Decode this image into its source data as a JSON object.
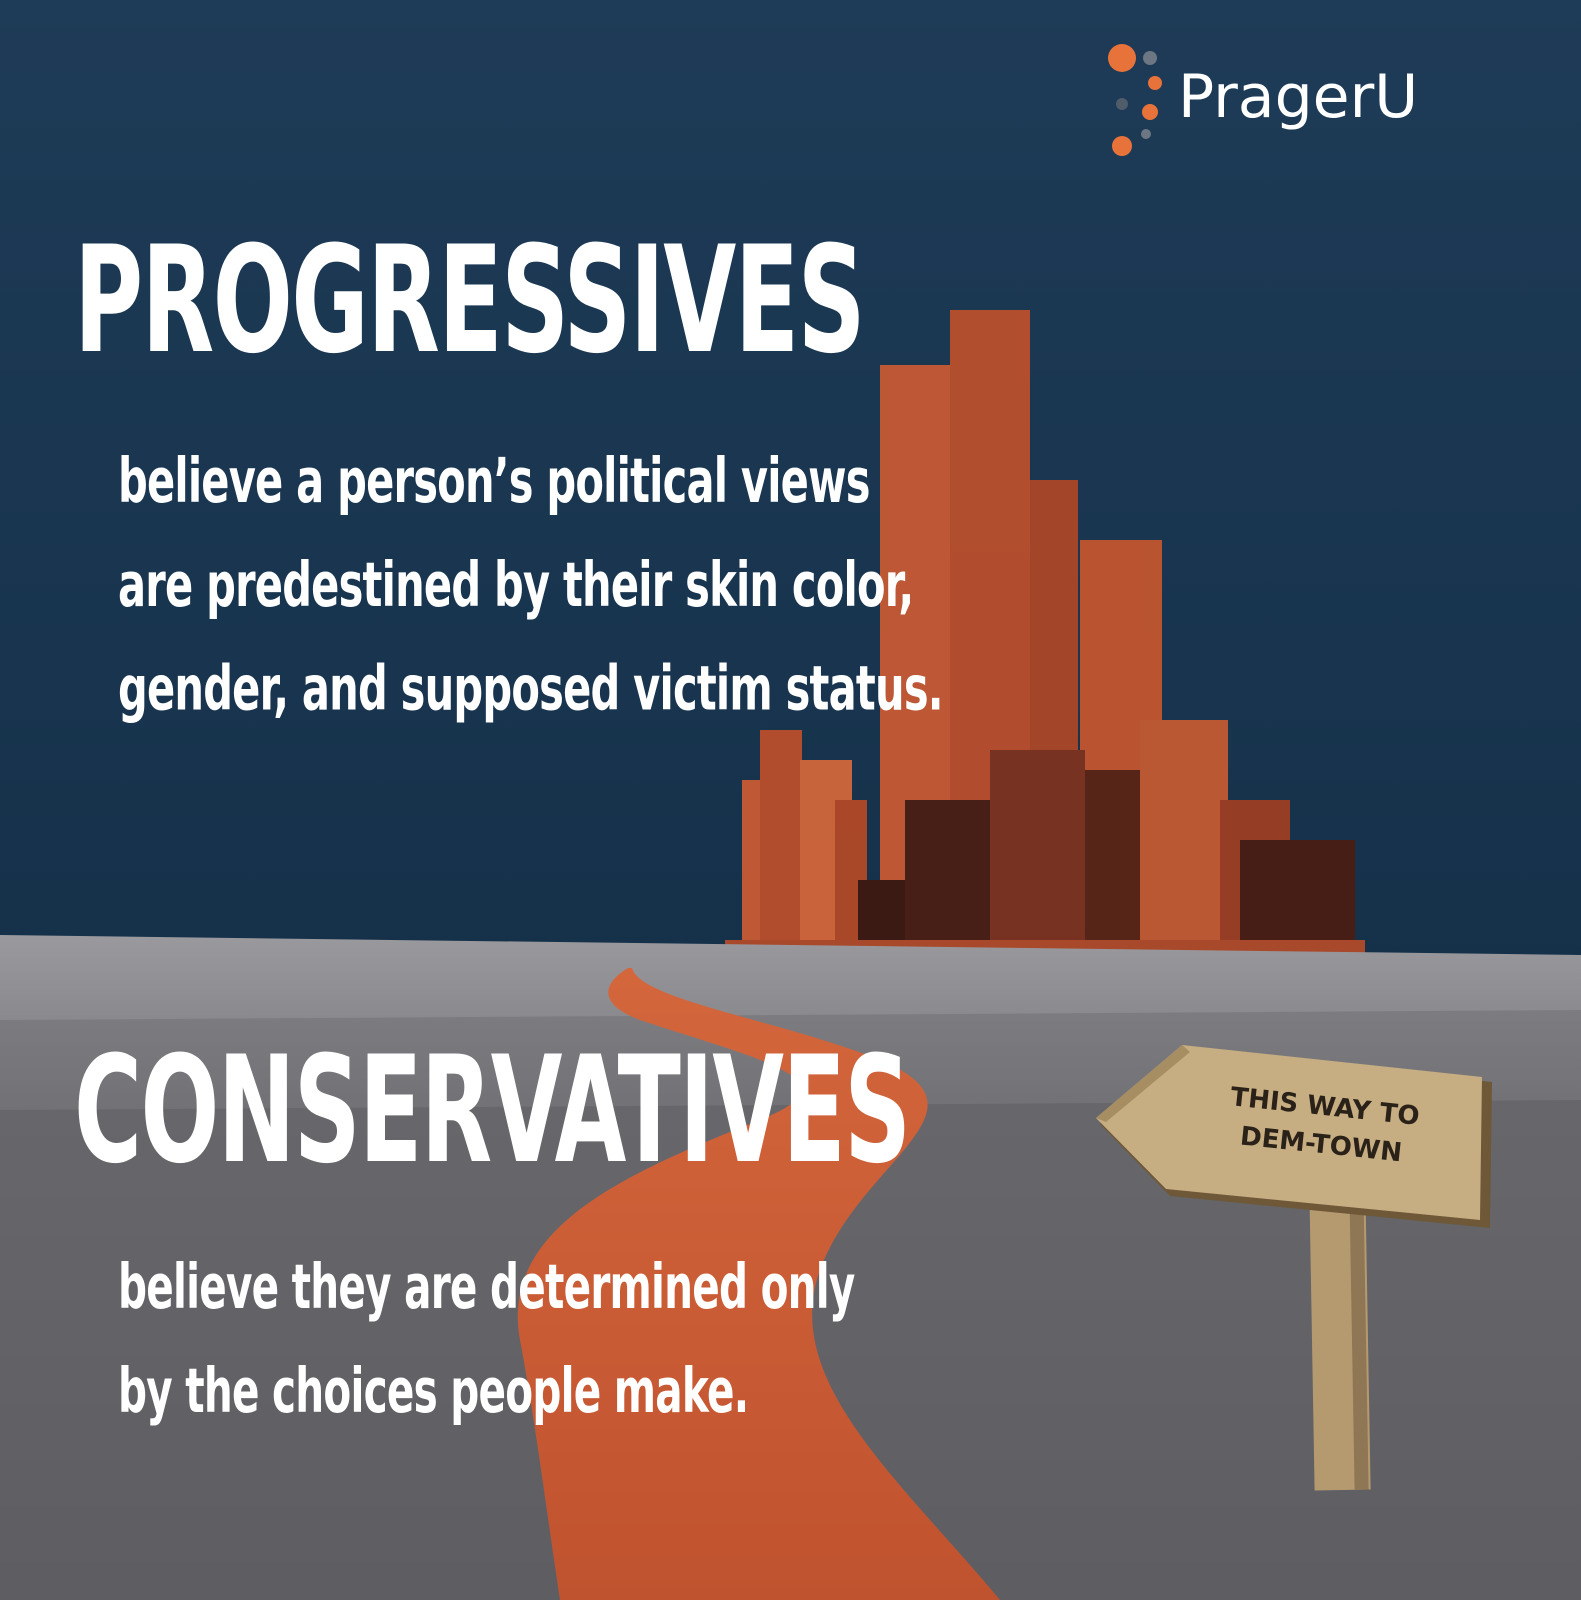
{
  "brand": {
    "name": "PragerU"
  },
  "progressives": {
    "heading": "PROGRESSIVES",
    "lines": [
      "believe a person’s political views",
      "are predestined by their skin color,",
      "gender, and supposed victim status."
    ]
  },
  "conservatives": {
    "heading": "CONSERVATIVES",
    "lines": [
      "believe they are determined only",
      "by the choices people make."
    ]
  },
  "signpost": {
    "lines": [
      "THIS WAY TO",
      "DEM-TOWN"
    ]
  },
  "colors": {
    "sky_top": "#1d3a55",
    "sky_bottom": "#16324a",
    "ground_far": "#8e8e92",
    "ground_near": "#5e5e62",
    "road": "#c85834",
    "brand_orange": "#e8733a",
    "sign_wood": "#c2a87e"
  }
}
